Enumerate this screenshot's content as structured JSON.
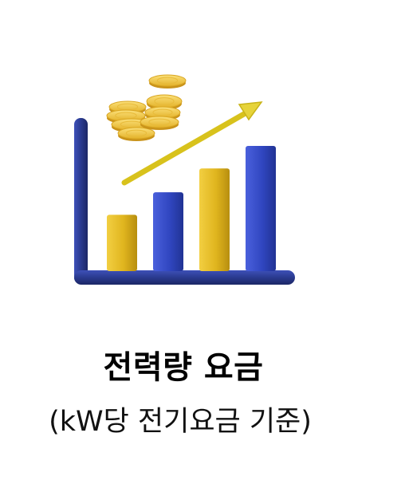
{
  "heading": {
    "title": "전력량 요금",
    "subtitle": "(kW당 전기요금 기준)"
  },
  "illustration": {
    "icon": "rising-cost-chart-icon",
    "bar_levels": [
      0.45,
      0.63,
      0.82,
      1.0
    ],
    "colors": {
      "axis": "#2a3a8f",
      "gold_bar": "#e0b51e",
      "blue_bar": "#3046c0",
      "arrow": "#d8c21c",
      "coin": "#f0c534"
    }
  }
}
